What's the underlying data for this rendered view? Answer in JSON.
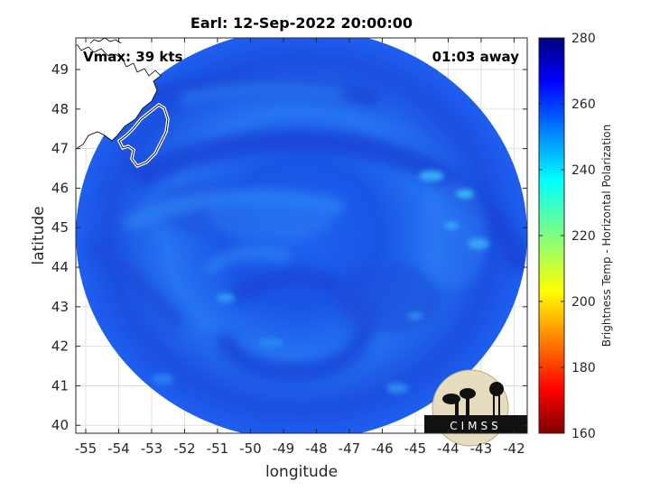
{
  "chart_data": {
    "type": "heatmap",
    "title": "Earl: 12-Sep-2022 20:00:00",
    "xlabel": "longitude",
    "ylabel": "latitude",
    "xlim": [
      -55.3,
      -41.6
    ],
    "ylim": [
      39.8,
      49.8
    ],
    "x_ticks": [
      -55,
      -54,
      -53,
      -52,
      -51,
      -50,
      -49,
      -48,
      -47,
      -46,
      -45,
      -44,
      -43,
      -42
    ],
    "y_ticks": [
      40,
      41,
      42,
      43,
      44,
      45,
      46,
      47,
      48,
      49
    ],
    "grid": true,
    "annotations": {
      "vmax": "Vmax: 39 kts",
      "time_away": "01:03 away"
    },
    "colorbar": {
      "label": "Brightness Temp - Horizontal Polarization",
      "min": 160,
      "max": 280,
      "ticks": [
        160,
        180,
        200,
        220,
        240,
        260,
        280
      ],
      "colormap": "jet"
    },
    "swath": {
      "center_lon": -48.6,
      "center_lat": 44.8,
      "typical_value": 258
    },
    "logo_text": "CIMSS"
  }
}
